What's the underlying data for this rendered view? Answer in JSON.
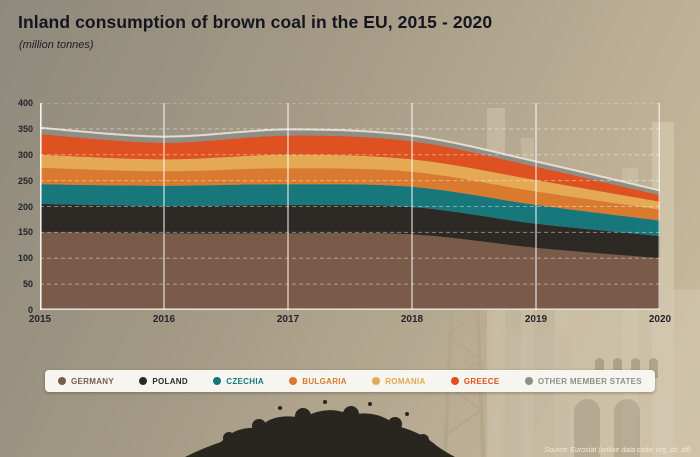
{
  "header": {
    "title": "Inland consumption of brown coal in the EU, 2015 - 2020",
    "subtitle": "(million tonnes)"
  },
  "chart_data": {
    "type": "area",
    "stacked": true,
    "title": "Inland consumption of brown coal in the EU, 2015 - 2020",
    "unit": "million tonnes",
    "x": [
      2015,
      2016,
      2017,
      2018,
      2019,
      2020
    ],
    "ylim": [
      0,
      400
    ],
    "yticks": [
      0,
      50,
      100,
      150,
      200,
      250,
      300,
      350,
      400
    ],
    "grid": "horizontal-dashed-white, vertical-solid-white",
    "legend_position": "bottom",
    "series": [
      {
        "name": "GERMANY",
        "color": "#7a5a49",
        "values": [
          150,
          148,
          148,
          146,
          120,
          100
        ]
      },
      {
        "name": "POLAND",
        "color": "#2d2a26",
        "values": [
          55,
          53,
          55,
          53,
          47,
          43
        ]
      },
      {
        "name": "CZECHIA",
        "color": "#17777a",
        "values": [
          38,
          39,
          40,
          39,
          36,
          30
        ]
      },
      {
        "name": "BULGARIA",
        "color": "#d97a2e",
        "values": [
          32,
          28,
          31,
          29,
          26,
          21
        ]
      },
      {
        "name": "ROMANIA",
        "color": "#e5a853",
        "values": [
          25,
          23,
          26,
          24,
          22,
          15
        ]
      },
      {
        "name": "GREECE",
        "color": "#de5120",
        "values": [
          40,
          32,
          37,
          35,
          26,
          13
        ]
      },
      {
        "name": "OTHER MEMBER STATES",
        "color": "#8f8e86",
        "values": [
          12,
          12,
          12,
          11,
          10,
          9
        ]
      }
    ]
  },
  "source": "Source: Eurostat (online data code: nrg_cb_sff)"
}
